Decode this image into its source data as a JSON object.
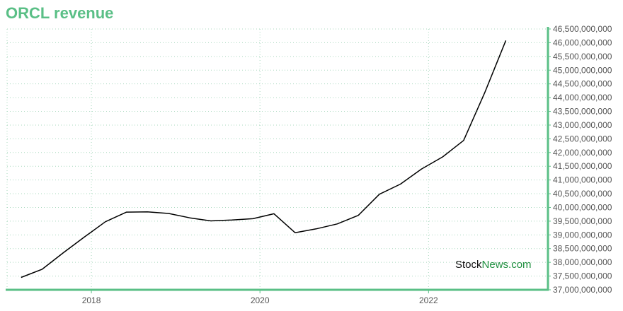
{
  "chart_data": {
    "type": "line",
    "title": "ORCL revenue",
    "xlabel": "",
    "ylabel": "",
    "x": [
      "2017-03",
      "2017-06",
      "2017-09",
      "2017-12",
      "2018-03",
      "2018-06",
      "2018-09",
      "2018-12",
      "2019-03",
      "2019-06",
      "2019-09",
      "2019-12",
      "2020-03",
      "2020-06",
      "2020-09",
      "2020-12",
      "2021-03",
      "2021-06",
      "2021-09",
      "2021-12",
      "2022-03",
      "2022-06",
      "2022-09",
      "2022-12"
    ],
    "series": [
      {
        "values": [
          37450000000,
          37750000000,
          38350000000,
          38920000000,
          39480000000,
          39830000000,
          39840000000,
          39780000000,
          39620000000,
          39510000000,
          39540000000,
          39590000000,
          39770000000,
          39080000000,
          39220000000,
          39400000000,
          39710000000,
          40480000000,
          40850000000,
          41400000000,
          41840000000,
          42440000000,
          44180000000,
          46080000000
        ]
      }
    ],
    "xlim": [
      "2017-01",
      "2023-06"
    ],
    "ylim": [
      37000000000,
      46500000000
    ],
    "x_ticks": [
      "2018",
      "2020",
      "2022"
    ],
    "y_ticks": [
      "37,000,000,000",
      "37,500,000,000",
      "38,000,000,000",
      "38,500,000,000",
      "39,000,000,000",
      "39,500,000,000",
      "40,000,000,000",
      "40,500,000,000",
      "41,000,000,000",
      "41,500,000,000",
      "42,000,000,000",
      "42,500,000,000",
      "43,000,000,000",
      "43,500,000,000",
      "44,000,000,000",
      "44,500,000,000",
      "45,000,000,000",
      "45,500,000,000",
      "46,000,000,000",
      "46,500,000,000"
    ],
    "grid": true,
    "y_axis_side": "right",
    "watermark": {
      "part1": "Stock",
      "part2": "News.com"
    },
    "colors": {
      "line": "#000000",
      "axis": "#5abf86",
      "title": "#5abf86",
      "grid": "#a8d8be",
      "watermark_dark": "#111111",
      "watermark_green": "#1d8f3e"
    }
  }
}
